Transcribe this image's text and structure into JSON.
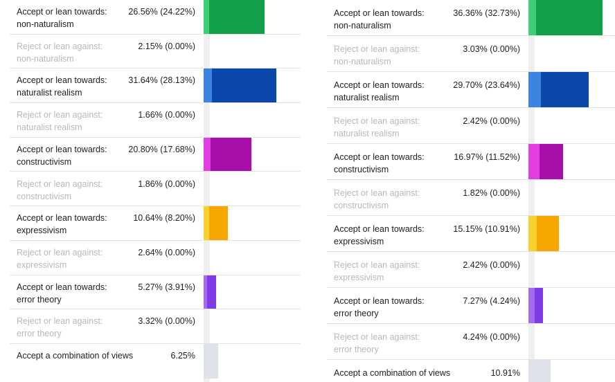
{
  "chart_data": [
    {
      "type": "bar",
      "orientation": "horizontal",
      "stacked": true,
      "categories": [
        "Accept or lean towards: non-naturalism",
        "Reject or lean against: non-naturalism",
        "Accept or lean towards: naturalist realism",
        "Reject or lean against: naturalist realism",
        "Accept or lean towards: constructivism",
        "Reject or lean against: constructivism",
        "Accept or lean towards: expressivism",
        "Reject or lean against: expressivism",
        "Accept or lean towards: error theory",
        "Reject or lean against: error theory",
        "Accept a combination of views"
      ],
      "rows": [
        {
          "label": "Accept or lean towards:\nnon-naturalism",
          "value_text": "26.56% (24.22%)",
          "total": 26.56,
          "inner": 24.22,
          "kind": "accept",
          "colors": [
            "#3ecf74",
            "#12a04a"
          ]
        },
        {
          "label": "Reject or lean against:\nnon-naturalism",
          "value_text": "2.15% (0.00%)",
          "total": 2.15,
          "inner": 0,
          "kind": "reject",
          "colors": [
            "#3ecf74",
            "#12a04a"
          ]
        },
        {
          "label": "Accept or lean towards:\nnaturalist realism",
          "value_text": "31.64% (28.13%)",
          "total": 31.64,
          "inner": 28.13,
          "kind": "accept",
          "colors": [
            "#3b84e0",
            "#0b47a8"
          ]
        },
        {
          "label": "Reject or lean against:\nnaturalist realism",
          "value_text": "1.66% (0.00%)",
          "total": 1.66,
          "inner": 0,
          "kind": "reject",
          "colors": [
            "#3b84e0",
            "#0b47a8"
          ]
        },
        {
          "label": "Accept or lean towards:\nconstructivism",
          "value_text": "20.80% (17.68%)",
          "total": 20.8,
          "inner": 17.68,
          "kind": "accept",
          "colors": [
            "#e23ddf",
            "#a80ea8"
          ]
        },
        {
          "label": "Reject or lean against:\nconstructivism",
          "value_text": "1.86% (0.00%)",
          "total": 1.86,
          "inner": 0,
          "kind": "reject",
          "colors": [
            "#e23ddf",
            "#a80ea8"
          ]
        },
        {
          "label": "Accept or lean towards:\nexpressivism",
          "value_text": "10.64% (8.20%)",
          "total": 10.64,
          "inner": 8.2,
          "kind": "accept",
          "colors": [
            "#f7d22e",
            "#f8a700"
          ]
        },
        {
          "label": "Reject or lean against:\nexpressivism",
          "value_text": "2.64% (0.00%)",
          "total": 2.64,
          "inner": 0,
          "kind": "reject",
          "colors": [
            "#f7d22e",
            "#f8a700"
          ]
        },
        {
          "label": "Accept or lean towards:\nerror theory",
          "value_text": "5.27% (3.91%)",
          "total": 5.27,
          "inner": 3.91,
          "kind": "accept",
          "colors": [
            "#a56af0",
            "#7f3be8"
          ]
        },
        {
          "label": "Reject or lean against:\nerror theory",
          "value_text": "3.32% (0.00%)",
          "total": 3.32,
          "inner": 0,
          "kind": "reject",
          "colors": [
            "#a56af0",
            "#7f3be8"
          ]
        },
        {
          "label": "Accept a combination of views",
          "value_text": "6.25%",
          "total": 6.25,
          "inner": 0,
          "kind": "combination",
          "colors": [
            "#dfe1e8",
            "#dfe1e8"
          ]
        }
      ]
    },
    {
      "type": "bar",
      "orientation": "horizontal",
      "stacked": true,
      "categories": [
        "Accept or lean towards: non-naturalism",
        "Reject or lean against: non-naturalism",
        "Accept or lean towards: naturalist realism",
        "Reject or lean against: naturalist realism",
        "Accept or lean towards: constructivism",
        "Reject or lean against: constructivism",
        "Accept or lean towards: expressivism",
        "Reject or lean against: expressivism",
        "Accept or lean towards: error theory",
        "Reject or lean against: error theory",
        "Accept a combination of views"
      ],
      "rows": [
        {
          "label": "Accept or lean towards:\nnon-naturalism",
          "value_text": "36.36% (32.73%)",
          "total": 36.36,
          "inner": 32.73,
          "kind": "accept",
          "colors": [
            "#3ecf74",
            "#12a04a"
          ]
        },
        {
          "label": "Reject or lean against:\nnon-naturalism",
          "value_text": "3.03% (0.00%)",
          "total": 3.03,
          "inner": 0,
          "kind": "reject",
          "colors": [
            "#3ecf74",
            "#12a04a"
          ]
        },
        {
          "label": "Accept or lean towards:\nnaturalist realism",
          "value_text": "29.70% (23.64%)",
          "total": 29.7,
          "inner": 23.64,
          "kind": "accept",
          "colors": [
            "#3b84e0",
            "#0b47a8"
          ]
        },
        {
          "label": "Reject or lean against:\nnaturalist realism",
          "value_text": "2.42% (0.00%)",
          "total": 2.42,
          "inner": 0,
          "kind": "reject",
          "colors": [
            "#3b84e0",
            "#0b47a8"
          ]
        },
        {
          "label": "Accept or lean towards:\nconstructivism",
          "value_text": "16.97% (11.52%)",
          "total": 16.97,
          "inner": 11.52,
          "kind": "accept",
          "colors": [
            "#e23ddf",
            "#a80ea8"
          ]
        },
        {
          "label": "Reject or lean against:\nconstructivism",
          "value_text": "1.82% (0.00%)",
          "total": 1.82,
          "inner": 0,
          "kind": "reject",
          "colors": [
            "#e23ddf",
            "#a80ea8"
          ]
        },
        {
          "label": "Accept or lean towards:\nexpressivism",
          "value_text": "15.15% (10.91%)",
          "total": 15.15,
          "inner": 10.91,
          "kind": "accept",
          "colors": [
            "#f7d22e",
            "#f8a700"
          ]
        },
        {
          "label": "Reject or lean against:\nexpressivism",
          "value_text": "2.42% (0.00%)",
          "total": 2.42,
          "inner": 0,
          "kind": "reject",
          "colors": [
            "#f7d22e",
            "#f8a700"
          ]
        },
        {
          "label": "Accept or lean towards:\nerror theory",
          "value_text": "7.27% (4.24%)",
          "total": 7.27,
          "inner": 4.24,
          "kind": "accept",
          "colors": [
            "#a56af0",
            "#7f3be8"
          ]
        },
        {
          "label": "Reject or lean against:\nerror theory",
          "value_text": "4.24% (0.00%)",
          "total": 4.24,
          "inner": 0,
          "kind": "reject",
          "colors": [
            "#a56af0",
            "#7f3be8"
          ]
        },
        {
          "label": "Accept a combination of views",
          "value_text": "10.91%",
          "total": 10.91,
          "inner": 0,
          "kind": "combination",
          "colors": [
            "#dfe1e8",
            "#dfe1e8"
          ]
        }
      ]
    }
  ]
}
